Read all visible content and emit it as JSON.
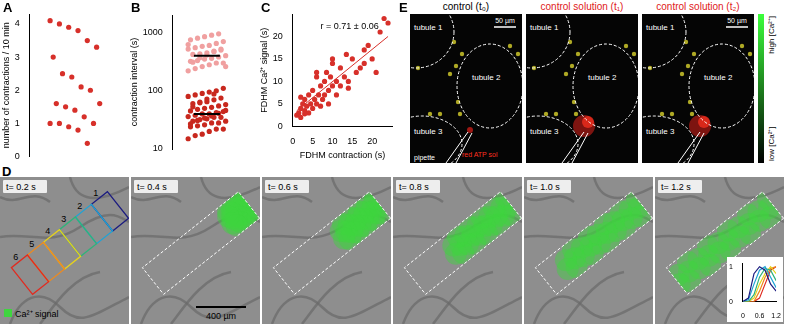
{
  "chart_data": [
    {
      "label": "A",
      "type": "strip",
      "y_label": "number of contractions / 10 min",
      "ylim": [
        0,
        4.3
      ],
      "yticks": [
        0,
        1,
        2,
        3,
        4
      ],
      "grid": false,
      "tick_labels": "y",
      "series": [
        {
          "color": "#d7302a",
          "values": [
            4.1,
            4.0,
            3.9,
            3.8,
            3.5,
            3.3,
            3.0,
            2.5,
            2.4,
            2.1,
            2.0,
            1.6,
            1.6,
            1.5,
            1.4,
            1.2,
            1.0,
            1.0,
            1.0,
            0.9,
            0.8,
            0.4
          ]
        }
      ]
    },
    {
      "label": "B",
      "type": "strip",
      "log": "y",
      "y_label": "contraction interval (s)",
      "ylim": [
        10,
        2000
      ],
      "yticks": [
        10,
        100,
        1000
      ],
      "grid": false,
      "tick_labels": "y",
      "series": [
        {
          "color": "#f0a0a0",
          "mean": 400,
          "values": [
            220,
            240,
            260,
            280,
            300,
            300,
            320,
            330,
            350,
            360,
            380,
            400,
            420,
            430,
            450,
            470,
            500,
            520,
            550,
            580,
            600,
            650,
            700,
            750,
            800,
            850,
            900,
            950,
            260,
            310,
            370,
            410,
            480,
            520,
            620
          ]
        },
        {
          "color": "#c8281e",
          "mean": 40,
          "values": [
            15,
            17,
            18,
            20,
            22,
            22,
            24,
            25,
            26,
            28,
            28,
            30,
            30,
            32,
            33,
            35,
            35,
            36,
            38,
            40,
            40,
            42,
            44,
            45,
            48,
            50,
            52,
            55,
            58,
            60,
            62,
            65,
            70,
            75,
            80,
            85,
            90,
            95,
            100,
            110,
            27,
            31,
            34,
            37,
            41,
            46,
            53,
            64,
            72,
            88
          ]
        }
      ]
    },
    {
      "label": "C",
      "type": "scatter",
      "x_label": "FDHM contraction (s)",
      "y_label": "FDHM Ca²⁺ signal (s)",
      "annotation": "r = 0.71 ± 0.06",
      "xlim": [
        0,
        25
      ],
      "xticks": [
        0,
        5,
        10,
        15,
        20
      ],
      "ylim": [
        0,
        25
      ],
      "yticks": [
        0,
        5,
        10,
        15,
        20
      ],
      "grid": false,
      "color": "#d7302a",
      "x": [
        1,
        1.5,
        2,
        2,
        2.5,
        3,
        3,
        3.5,
        4,
        4,
        4.5,
        5,
        5,
        5.5,
        6,
        6,
        6.5,
        7,
        7,
        7.5,
        8,
        8,
        8.5,
        9,
        9,
        9.5,
        10,
        10,
        11,
        11,
        12,
        12,
        13,
        13.5,
        14,
        14,
        15,
        16,
        17,
        18,
        18,
        19,
        20,
        21,
        22,
        23,
        24,
        3,
        2,
        6,
        10
      ],
      "values": [
        2.5,
        3,
        4,
        2,
        5,
        3.5,
        6,
        4.5,
        3,
        7,
        5,
        4,
        8,
        6,
        5,
        11,
        7,
        9,
        4.5,
        6,
        10,
        7,
        12,
        8,
        5,
        11,
        9,
        14,
        10,
        7,
        13,
        9,
        11,
        16,
        10,
        8.5,
        15,
        12,
        13,
        17,
        14,
        18,
        15,
        12,
        21,
        24,
        23,
        2.8,
        6.5,
        12,
        15
      ],
      "fit": {
        "x": [
          1,
          24
        ],
        "values": [
          3.5,
          20
        ]
      }
    },
    {
      "type": "line",
      "xlim": [
        0,
        1.2
      ],
      "xticks": [
        0,
        0.6,
        1.2
      ],
      "ylim": [
        0,
        1.1
      ],
      "yticks": [
        0,
        1
      ],
      "grid": false,
      "x": [
        0,
        0.2,
        0.4,
        0.6,
        0.8,
        1.0,
        1.2
      ],
      "series": [
        {
          "name": "1",
          "color": "#1c1c80",
          "values": [
            0,
            0.1,
            0.8,
            1.0,
            0.9,
            0.5,
            0.3
          ]
        },
        {
          "name": "2",
          "color": "#1fa3d6",
          "values": [
            0,
            0.05,
            0.5,
            0.9,
            1.0,
            0.7,
            0.4
          ]
        },
        {
          "name": "3",
          "color": "#2fb37a",
          "values": [
            0,
            0,
            0.2,
            0.7,
            0.95,
            0.9,
            0.6
          ]
        },
        {
          "name": "4",
          "color": "#e6d21c",
          "values": [
            0,
            0,
            0.1,
            0.5,
            0.8,
            1.0,
            0.8
          ]
        },
        {
          "name": "5",
          "color": "#f08a1c",
          "values": [
            0,
            0,
            0,
            0.3,
            0.7,
            0.95,
            1.0
          ]
        },
        {
          "name": "6",
          "color": "#e02b20",
          "values": [
            0,
            0,
            0,
            0.1,
            0.5,
            0.9,
            1.0
          ]
        }
      ]
    }
  ],
  "image_panels": {
    "D": {
      "label": "D",
      "times": [
        "t= 0.2 s",
        "t= 0.4 s",
        "t= 0.6 s",
        "t= 0.8 s",
        "t= 1.0 s",
        "t= 1.2 s"
      ],
      "legend": "Ca²⁺ signal",
      "scale_bar": "400 µm"
    },
    "E": {
      "label": "E",
      "titles": [
        "control (t₀)",
        "control solution (t₁)",
        "control solution (t₂)"
      ],
      "tubules": [
        "tubule 1",
        "tubule 2",
        "tubule 3"
      ],
      "pipette": "pipette",
      "solution": "red ATP sol",
      "scale_bar": "50 µm",
      "colorbar": [
        "high [Ca²⁺]",
        "low [Ca²⁺]"
      ]
    }
  }
}
